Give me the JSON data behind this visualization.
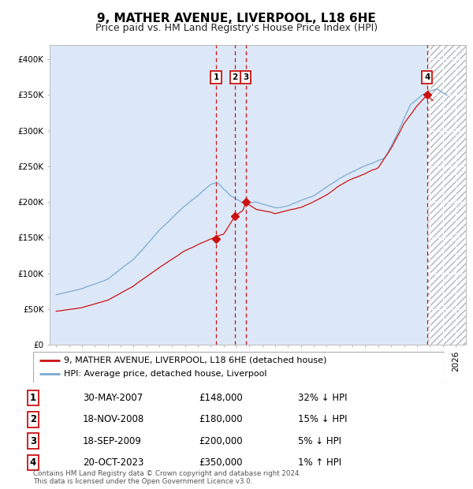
{
  "title": "9, MATHER AVENUE, LIVERPOOL, L18 6HE",
  "subtitle": "Price paid vs. HM Land Registry's House Price Index (HPI)",
  "ylim": [
    0,
    420000
  ],
  "yticks": [
    0,
    50000,
    100000,
    150000,
    200000,
    250000,
    300000,
    350000,
    400000
  ],
  "ytick_labels": [
    "£0",
    "£50K",
    "£100K",
    "£150K",
    "£200K",
    "£250K",
    "£300K",
    "£350K",
    "£400K"
  ],
  "xlim_start": 1994.5,
  "xlim_end": 2026.8,
  "background_color": "#dce8f8",
  "hpi_color": "#7aaad0",
  "price_color": "#cc1111",
  "vline_color": "#cc1111",
  "sale_dates_year": [
    2007.41,
    2008.88,
    2009.71,
    2023.79
  ],
  "sale_prices": [
    148000,
    180000,
    200000,
    350000
  ],
  "sale_labels": [
    "1",
    "2",
    "3",
    "4"
  ],
  "legend_price_label": "9, MATHER AVENUE, LIVERPOOL, L18 6HE (detached house)",
  "legend_hpi_label": "HPI: Average price, detached house, Liverpool",
  "table_rows": [
    [
      "1",
      "30-MAY-2007",
      "£148,000",
      "32% ↓ HPI"
    ],
    [
      "2",
      "18-NOV-2008",
      "£180,000",
      "15% ↓ HPI"
    ],
    [
      "3",
      "18-SEP-2009",
      "£200,000",
      "5% ↓ HPI"
    ],
    [
      "4",
      "20-OCT-2023",
      "£350,000",
      "1% ↑ HPI"
    ]
  ],
  "footer": "Contains HM Land Registry data © Crown copyright and database right 2024.\nThis data is licensed under the Open Government Licence v3.0.",
  "title_fontsize": 11,
  "subtitle_fontsize": 9,
  "axis_fontsize": 7.5,
  "legend_fontsize": 8,
  "table_fontsize": 8.5
}
